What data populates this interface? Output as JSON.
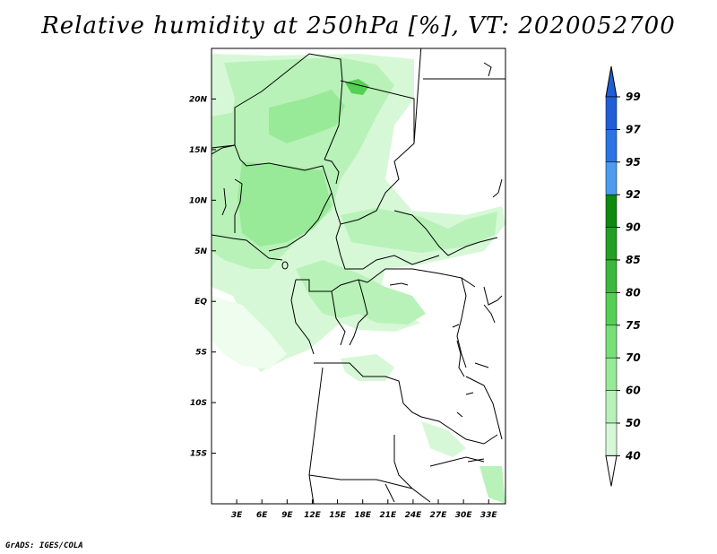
{
  "title": "Relative humidity at 250hPa [%], VT: 2020052700",
  "footer": "GrADS: IGES/COLA",
  "map": {
    "lon_range": [
      0,
      35
    ],
    "lat_range": [
      -20,
      25
    ],
    "lon_ticks": [
      "3E",
      "6E",
      "9E",
      "12E",
      "15E",
      "18E",
      "21E",
      "24E",
      "27E",
      "30E",
      "33E"
    ],
    "lat_ticks": [
      "20N",
      "15N",
      "10N",
      "5N",
      "EQ",
      "5S",
      "10S",
      "15S"
    ]
  },
  "colorbar": {
    "levels": [
      "99",
      "97",
      "95",
      "92",
      "90",
      "85",
      "80",
      "75",
      "70",
      "60",
      "50",
      "40"
    ],
    "colors": [
      "#1f5fd6",
      "#2a74e6",
      "#4d9cf0",
      "#0f8a0f",
      "#23a023",
      "#3cb83c",
      "#55d055",
      "#78e078",
      "#98ea98",
      "#b8f2b8",
      "#d6f8d6",
      "#eefdee"
    ],
    "arrow_top_color": "#1f5fd6",
    "arrow_bottom_color": "#ffffff"
  }
}
